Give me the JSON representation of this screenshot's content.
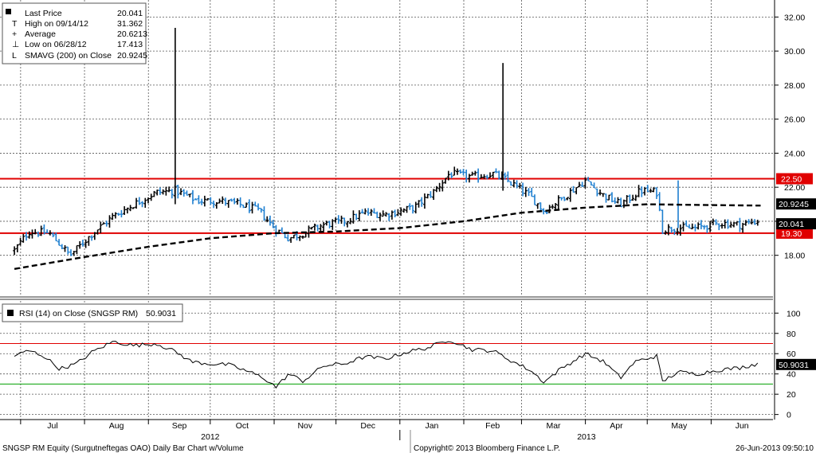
{
  "legend_price": {
    "rows": [
      {
        "label": "Last Price",
        "value": "20.041"
      },
      {
        "label": "High on 09/14/12",
        "value": "31.362"
      },
      {
        "label": "Average",
        "value": "20.6213"
      },
      {
        "label": "Low on 06/28/12",
        "value": "17.413"
      },
      {
        "label": "SMAVG (200) on Close",
        "value": "20.9245"
      }
    ]
  },
  "legend_rsi": {
    "label": "RSI (14) on Close (SNGSP RM)",
    "value": "50.9031"
  },
  "footer": {
    "left": "SNGSP RM Equity (Surgutneftegas OAO) Daily Bar Chart w/Volume",
    "center": "Copyright© 2013 Bloomberg Finance L.P.",
    "right": "26-Jun-2013 09:50:10"
  },
  "colors": {
    "up_bar": "#000000",
    "down_bar": "#1e7fd0",
    "resistance_line": "#e00000",
    "sma_line": "#000000",
    "rsi_line": "#000000",
    "rsi_overbought": "#e00000",
    "rsi_oversold": "#00a000"
  },
  "chart_data": [
    {
      "type": "bar",
      "subtype": "ohlc",
      "price_axis": {
        "ylim": [
          15.6,
          33.0
        ],
        "ticks": [
          "32.00",
          "30.00",
          "28.00",
          "26.00",
          "24.00",
          "22.00",
          "20.00",
          "18.00"
        ]
      },
      "x_axis": {
        "months": [
          "Jul",
          "Aug",
          "Sep",
          "Oct",
          "Nov",
          "Dec",
          "Jan",
          "Feb",
          "Mar",
          "Apr",
          "May",
          "Jun"
        ],
        "years": [
          "2012",
          "2013"
        ]
      },
      "grid": true,
      "horizontal_lines": [
        {
          "label": "22.50",
          "value": 22.5
        },
        {
          "label": "19.30",
          "value": 19.3
        }
      ],
      "value_tags": [
        {
          "label": "20.9245",
          "value": 20.9245
        },
        {
          "label": "20.041",
          "value": 20.041
        }
      ],
      "price_path": [
        {
          "date": "2012-06-28",
          "close": 18.3
        },
        {
          "date": "2012-07-05",
          "close": 19.4
        },
        {
          "date": "2012-07-15",
          "close": 19.3
        },
        {
          "date": "2012-07-25",
          "close": 18.0
        },
        {
          "date": "2012-08-05",
          "close": 19.3
        },
        {
          "date": "2012-08-15",
          "close": 20.3
        },
        {
          "date": "2012-08-25",
          "close": 21.0
        },
        {
          "date": "2012-09-05",
          "close": 21.7
        },
        {
          "date": "2012-09-14",
          "close": 21.8
        },
        {
          "date": "2012-09-25",
          "close": 21.2
        },
        {
          "date": "2012-10-05",
          "close": 21.2
        },
        {
          "date": "2012-10-15",
          "close": 21.0
        },
        {
          "date": "2012-10-25",
          "close": 20.6
        },
        {
          "date": "2012-11-01",
          "close": 19.6
        },
        {
          "date": "2012-11-08",
          "close": 19.0
        },
        {
          "date": "2012-11-15",
          "close": 19.3
        },
        {
          "date": "2012-11-25",
          "close": 19.8
        },
        {
          "date": "2012-12-05",
          "close": 20.0
        },
        {
          "date": "2012-12-15",
          "close": 20.5
        },
        {
          "date": "2012-12-25",
          "close": 20.4
        },
        {
          "date": "2013-01-08",
          "close": 20.8
        },
        {
          "date": "2013-01-18",
          "close": 21.8
        },
        {
          "date": "2013-01-25",
          "close": 22.8
        },
        {
          "date": "2013-02-05",
          "close": 22.6
        },
        {
          "date": "2013-02-15",
          "close": 22.8
        },
        {
          "date": "2013-02-22",
          "close": 22.4
        },
        {
          "date": "2013-03-05",
          "close": 21.5
        },
        {
          "date": "2013-03-12",
          "close": 20.6
        },
        {
          "date": "2013-03-20",
          "close": 21.3
        },
        {
          "date": "2013-04-01",
          "close": 22.4
        },
        {
          "date": "2013-04-10",
          "close": 21.5
        },
        {
          "date": "2013-04-18",
          "close": 21.0
        },
        {
          "date": "2013-04-28",
          "close": 21.8
        },
        {
          "date": "2013-05-06",
          "close": 21.7
        },
        {
          "date": "2013-05-08",
          "close": 19.5
        },
        {
          "date": "2013-05-14",
          "close": 19.6
        },
        {
          "date": "2013-05-24",
          "close": 19.6
        },
        {
          "date": "2013-06-05",
          "close": 19.9
        },
        {
          "date": "2013-06-15",
          "close": 19.8
        },
        {
          "date": "2013-06-25",
          "close": 20.04
        }
      ],
      "spikes": [
        {
          "date": "2012-09-14",
          "high": 31.362,
          "low": 21.0
        },
        {
          "date": "2013-02-20",
          "high": 29.3,
          "low": 21.8
        },
        {
          "date": "2013-05-16",
          "high": 22.4,
          "low": 19.6
        }
      ],
      "sma_200": [
        {
          "date": "2012-06-28",
          "value": 17.2
        },
        {
          "date": "2012-08-01",
          "value": 17.9
        },
        {
          "date": "2012-09-01",
          "value": 18.5
        },
        {
          "date": "2012-10-01",
          "value": 19.0
        },
        {
          "date": "2012-11-01",
          "value": 19.3
        },
        {
          "date": "2012-12-01",
          "value": 19.4
        },
        {
          "date": "2013-01-01",
          "value": 19.6
        },
        {
          "date": "2013-02-01",
          "value": 20.0
        },
        {
          "date": "2013-03-01",
          "value": 20.5
        },
        {
          "date": "2013-04-01",
          "value": 20.8
        },
        {
          "date": "2013-05-01",
          "value": 21.0
        },
        {
          "date": "2013-06-01",
          "value": 20.95
        },
        {
          "date": "2013-06-25",
          "value": 20.9245
        }
      ]
    },
    {
      "type": "line",
      "name": "RSI (14)",
      "ylim": [
        -5,
        112
      ],
      "ticks": [
        "100",
        "80",
        "60",
        "50.9031",
        "40",
        "20",
        "0"
      ],
      "tick_values": [
        100,
        80,
        60,
        40,
        20,
        0
      ],
      "overbought": 70,
      "oversold": 30,
      "series": [
        {
          "date": "2012-06-28",
          "value": 58
        },
        {
          "date": "2012-07-05",
          "value": 63
        },
        {
          "date": "2012-07-12",
          "value": 58
        },
        {
          "date": "2012-07-20",
          "value": 45
        },
        {
          "date": "2012-07-28",
          "value": 50
        },
        {
          "date": "2012-08-05",
          "value": 62
        },
        {
          "date": "2012-08-15",
          "value": 72
        },
        {
          "date": "2012-08-25",
          "value": 68
        },
        {
          "date": "2012-09-05",
          "value": 70
        },
        {
          "date": "2012-09-14",
          "value": 62
        },
        {
          "date": "2012-09-22",
          "value": 52
        },
        {
          "date": "2012-10-01",
          "value": 50
        },
        {
          "date": "2012-10-10",
          "value": 49
        },
        {
          "date": "2012-10-20",
          "value": 42
        },
        {
          "date": "2012-10-27",
          "value": 36
        },
        {
          "date": "2012-11-02",
          "value": 27
        },
        {
          "date": "2012-11-08",
          "value": 40
        },
        {
          "date": "2012-11-15",
          "value": 33
        },
        {
          "date": "2012-11-25",
          "value": 48
        },
        {
          "date": "2012-12-05",
          "value": 50
        },
        {
          "date": "2012-12-15",
          "value": 57
        },
        {
          "date": "2012-12-25",
          "value": 55
        },
        {
          "date": "2013-01-05",
          "value": 62
        },
        {
          "date": "2013-01-15",
          "value": 66
        },
        {
          "date": "2013-01-25",
          "value": 74
        },
        {
          "date": "2013-02-05",
          "value": 64
        },
        {
          "date": "2013-02-15",
          "value": 63
        },
        {
          "date": "2013-02-25",
          "value": 52
        },
        {
          "date": "2013-03-05",
          "value": 44
        },
        {
          "date": "2013-03-12",
          "value": 32
        },
        {
          "date": "2013-03-20",
          "value": 45
        },
        {
          "date": "2013-04-01",
          "value": 60
        },
        {
          "date": "2013-04-10",
          "value": 52
        },
        {
          "date": "2013-04-18",
          "value": 36
        },
        {
          "date": "2013-04-25",
          "value": 52
        },
        {
          "date": "2013-05-06",
          "value": 58
        },
        {
          "date": "2013-05-08",
          "value": 32
        },
        {
          "date": "2013-05-16",
          "value": 42
        },
        {
          "date": "2013-05-25",
          "value": 40
        },
        {
          "date": "2013-06-05",
          "value": 44
        },
        {
          "date": "2013-06-15",
          "value": 46
        },
        {
          "date": "2013-06-25",
          "value": 50.9
        }
      ]
    }
  ]
}
